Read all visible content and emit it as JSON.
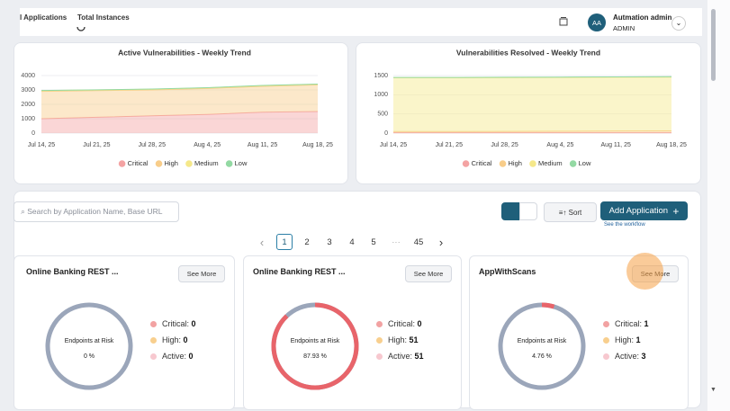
{
  "topbar": {
    "tabs": [
      "l Applications",
      "Total Instances"
    ],
    "user": {
      "initials": "AA",
      "name": "Autmation admin",
      "role": "ADMIN"
    }
  },
  "charts": [
    {
      "type": "area",
      "stacked": true,
      "title": "Active Vulnerabilities - Weekly Trend",
      "categories": [
        "Jul 14, 25",
        "Jul 21, 25",
        "Jul 28, 25",
        "Aug 4, 25",
        "Aug 11, 25",
        "Aug 18, 25"
      ],
      "series": [
        {
          "name": "Critical",
          "color": "#f4a3a3",
          "values": [
            1000,
            1100,
            1200,
            1300,
            1450,
            1500
          ]
        },
        {
          "name": "High",
          "color": "#f8cd8a",
          "values": [
            1900,
            1850,
            1800,
            1800,
            1800,
            1850
          ]
        },
        {
          "name": "Medium",
          "color": "#f5e88a",
          "values": [
            50,
            50,
            50,
            50,
            50,
            50
          ]
        },
        {
          "name": "Low",
          "color": "#93d9a3",
          "values": [
            10,
            10,
            10,
            10,
            10,
            10
          ]
        }
      ],
      "ylim": [
        0,
        4000
      ],
      "yticks": [
        0,
        1000,
        2000,
        3000,
        4000
      ],
      "grid": true
    },
    {
      "type": "area",
      "stacked": true,
      "title": "Vulnerabilities Resolved - Weekly Trend",
      "categories": [
        "Jul 14, 25",
        "Jul 21, 25",
        "Jul 28, 25",
        "Aug 4, 25",
        "Aug 11, 25",
        "Aug 18, 25"
      ],
      "series": [
        {
          "name": "Critical",
          "color": "#f4a3a3",
          "values": [
            10,
            10,
            10,
            10,
            10,
            10
          ]
        },
        {
          "name": "High",
          "color": "#f8cd8a",
          "values": [
            30,
            30,
            35,
            40,
            45,
            50
          ]
        },
        {
          "name": "Medium",
          "color": "#f5e88a",
          "values": [
            1400,
            1400,
            1400,
            1400,
            1400,
            1400
          ]
        },
        {
          "name": "Low",
          "color": "#93d9a3",
          "values": [
            10,
            10,
            10,
            10,
            10,
            10
          ]
        }
      ],
      "ylim": [
        0,
        1500
      ],
      "yticks": [
        0,
        500,
        1000,
        1500
      ],
      "grid": true
    }
  ],
  "toolbar": {
    "search_placeholder": "Search by Application Name, Base URL",
    "sort": "Sort",
    "add": "Add Application",
    "add_icon": "+",
    "workflow": "See the workflow"
  },
  "pagination": {
    "prev": "‹",
    "pages": [
      1,
      2,
      3,
      4,
      5,
      "···",
      45
    ],
    "next": "›",
    "current": 1
  },
  "apps": [
    {
      "name": "Online Banking REST ...",
      "button": "See More",
      "gauge_title": "Endpoints at Risk",
      "risk": 0,
      "risk_label": "0 %",
      "stats": [
        {
          "label": "Critical:",
          "value": 0,
          "color": "#f2a2a2"
        },
        {
          "label": "High:",
          "value": 0,
          "color": "#f8cf8e"
        },
        {
          "label": "Active:",
          "value": 0,
          "color": "#f7c8cf"
        }
      ]
    },
    {
      "name": "Online Banking REST ...",
      "button": "See More",
      "gauge_title": "Endpoints at Risk",
      "risk": 87.93,
      "risk_label": "87.93 %",
      "stats": [
        {
          "label": "Critical:",
          "value": 0,
          "color": "#f2a2a2"
        },
        {
          "label": "High:",
          "value": 51,
          "color": "#f8cf8e"
        },
        {
          "label": "Active:",
          "value": 51,
          "color": "#f7c8cf"
        }
      ]
    },
    {
      "name": "AppWithScans",
      "button": "See More",
      "gauge_title": "Endpoints at Risk",
      "risk": 4.76,
      "risk_label": "4.76 %",
      "stats": [
        {
          "label": "Critical:",
          "value": 1,
          "color": "#f2a2a2"
        },
        {
          "label": "High:",
          "value": 1,
          "color": "#f8cf8e"
        },
        {
          "label": "Active:",
          "value": 3,
          "color": "#f7c8cf"
        }
      ]
    }
  ]
}
